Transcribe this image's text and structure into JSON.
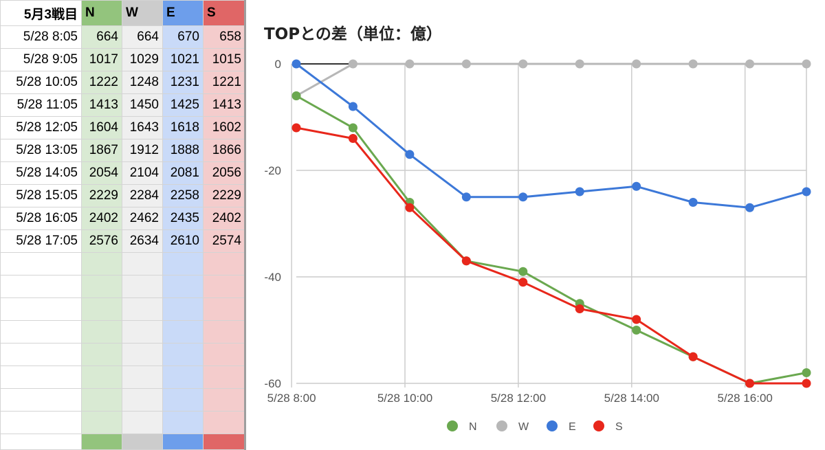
{
  "sheet": {
    "header": {
      "label": "5月3戦目",
      "n": "N",
      "w": "W",
      "e": "E",
      "s": "S"
    },
    "rows": [
      {
        "time": "5/28 8:05",
        "n": "664",
        "w": "664",
        "e": "670",
        "s": "658"
      },
      {
        "time": "5/28 9:05",
        "n": "1017",
        "w": "1029",
        "e": "1021",
        "s": "1015"
      },
      {
        "time": "5/28 10:05",
        "n": "1222",
        "w": "1248",
        "e": "1231",
        "s": "1221"
      },
      {
        "time": "5/28 11:05",
        "n": "1413",
        "w": "1450",
        "e": "1425",
        "s": "1413"
      },
      {
        "time": "5/28 12:05",
        "n": "1604",
        "w": "1643",
        "e": "1618",
        "s": "1602"
      },
      {
        "time": "5/28 13:05",
        "n": "1867",
        "w": "1912",
        "e": "1888",
        "s": "1866"
      },
      {
        "time": "5/28 14:05",
        "n": "2054",
        "w": "2104",
        "e": "2081",
        "s": "2056"
      },
      {
        "time": "5/28 15:05",
        "n": "2229",
        "w": "2284",
        "e": "2258",
        "s": "2229"
      },
      {
        "time": "5/28 16:05",
        "n": "2402",
        "w": "2462",
        "e": "2435",
        "s": "2402"
      },
      {
        "time": "5/28 17:05",
        "n": "2576",
        "w": "2634",
        "e": "2610",
        "s": "2574"
      }
    ]
  },
  "chart_data": {
    "type": "line",
    "title": "TOPとの差（単位：億）",
    "xlabel": "",
    "ylabel": "",
    "x": [
      "5/28 8:05",
      "5/28 9:05",
      "5/28 10:05",
      "5/28 11:05",
      "5/28 12:05",
      "5/28 13:05",
      "5/28 14:05",
      "5/28 15:05",
      "5/28 16:05",
      "5/28 17:05"
    ],
    "x_ticks": [
      "5/28 8:00",
      "5/28 10:00",
      "5/28 12:00",
      "5/28 14:00",
      "5/28 16:00"
    ],
    "y_ticks": [
      "0",
      "-20",
      "-40",
      "-60"
    ],
    "ylim": [
      -60,
      0
    ],
    "grid": true,
    "legend": "bottom",
    "series": [
      {
        "name": "N",
        "color": "#6aa84f",
        "values": [
          -6,
          -12,
          -26,
          -37,
          -39,
          -45,
          -50,
          -55,
          -60,
          -58
        ]
      },
      {
        "name": "W",
        "color": "#b7b7b7",
        "values": [
          -6,
          0,
          0,
          0,
          0,
          0,
          0,
          0,
          0,
          0
        ]
      },
      {
        "name": "E",
        "color": "#3c78d8",
        "values": [
          0,
          -8,
          -17,
          -25,
          -25,
          -24,
          -23,
          -26,
          -27,
          -24
        ]
      },
      {
        "name": "S",
        "color": "#e8271b",
        "values": [
          -12,
          -14,
          -27,
          -37,
          -41,
          -46,
          -48,
          -55,
          -60,
          -60
        ]
      }
    ]
  }
}
